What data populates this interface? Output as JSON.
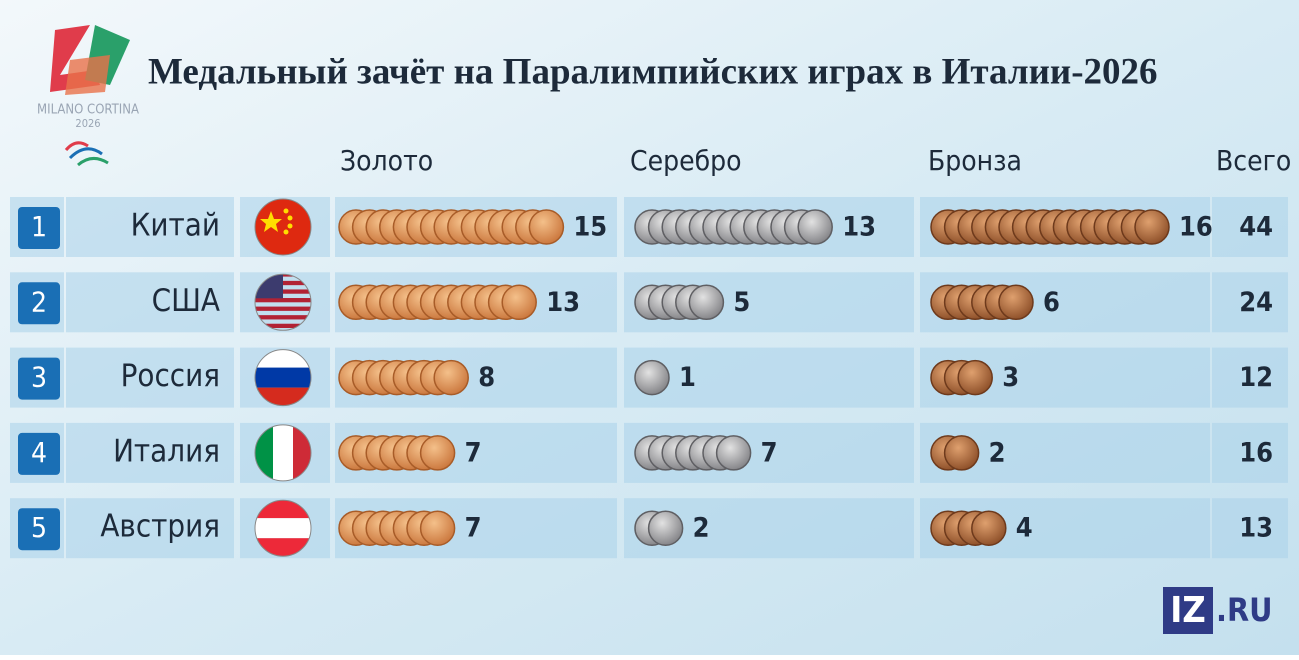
{
  "header": {
    "title": "Медальный зачёт на Паралимпийских играх в Италии-2026",
    "logo_name": "MILANO CORTINA",
    "logo_year": "2026"
  },
  "table": {
    "columns": [
      "Золото",
      "Серебро",
      "Бронза",
      "Всего"
    ],
    "rows": [
      {
        "rank": "1",
        "country": "Китай",
        "gold": 15,
        "silver": 13,
        "bronze": 16,
        "total": 44
      },
      {
        "rank": "2",
        "country": "США",
        "gold": 13,
        "silver": 5,
        "bronze": 6,
        "total": 24
      },
      {
        "rank": "3",
        "country": "Россия",
        "gold": 8,
        "silver": 1,
        "bronze": 3,
        "total": 12
      },
      {
        "rank": "4",
        "country": "Италия",
        "gold": 7,
        "silver": 7,
        "bronze": 2,
        "total": 16
      },
      {
        "rank": "5",
        "country": "Австрия",
        "gold": 7,
        "silver": 2,
        "bronze": 4,
        "total": 13
      }
    ]
  },
  "footer": {
    "brand": "IZ",
    "domain": ".RU"
  }
}
